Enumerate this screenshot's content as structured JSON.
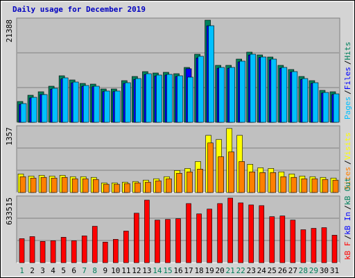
{
  "chart_data": [
    {
      "type": "bar",
      "title": "Daily usage for December 2019",
      "title_color": "#0000c0",
      "categories": [
        "1",
        "2",
        "3",
        "4",
        "5",
        "6",
        "7",
        "8",
        "9",
        "10",
        "11",
        "12",
        "13",
        "14",
        "15",
        "16",
        "17",
        "18",
        "19",
        "20",
        "21",
        "22",
        "23",
        "24",
        "25",
        "26",
        "27",
        "28",
        "29",
        "30",
        "31"
      ],
      "category_colors": [
        "#00805c",
        "#000000",
        "#000000",
        "#000000",
        "#000000",
        "#000000",
        "#00805c",
        "#00805c",
        "#000000",
        "#000000",
        "#000000",
        "#000000",
        "#000000",
        "#00805c",
        "#00805c",
        "#000000",
        "#000000",
        "#000000",
        "#000000",
        "#000000",
        "#00805c",
        "#00805c",
        "#000000",
        "#000000",
        "#000000",
        "#000000",
        "#000000",
        "#00805c",
        "#00805c",
        "#000000",
        "#000000"
      ],
      "ylim": [
        0,
        21388
      ],
      "yticks": [
        21388
      ],
      "separator": "/",
      "series": [
        {
          "name": "Hits",
          "color": "#00805c",
          "values": [
            4278,
            5561,
            6274,
            7414,
            9553,
            8698,
            7985,
            7842,
            6844,
            6844,
            8555,
            9411,
            10409,
            10124,
            10266,
            9981,
            11264,
            13973,
            20960,
            11692,
            11692,
            12975,
            14401,
            13831,
            13403,
            11692,
            10837,
            9411,
            8555,
            6559,
            6274
          ]
        },
        {
          "name": "Files",
          "color": "#0000ff",
          "values": [
            3700,
            5000,
            5700,
            6800,
            8900,
            8100,
            7400,
            7300,
            6300,
            6300,
            8000,
            8800,
            9800,
            9500,
            9700,
            9400,
            11000,
            13200,
            19800,
            11100,
            11100,
            12400,
            13800,
            13300,
            12800,
            11100,
            10300,
            8800,
            8000,
            6000,
            5700
          ]
        },
        {
          "name": "Pages",
          "color": "#00c0ff",
          "values": [
            3850,
            5130,
            5700,
            6990,
            9125,
            8270,
            7560,
            7415,
            6420,
            6420,
            8130,
            8985,
            9980,
            9700,
            9840,
            9555,
            9270,
            13550,
            19820,
            11265,
            11265,
            12550,
            13975,
            13405,
            12975,
            11265,
            10410,
            8985,
            8130,
            6130,
            5845
          ]
        }
      ]
    },
    {
      "type": "bar",
      "ylim": [
        0,
        1357
      ],
      "yticks": [
        1357
      ],
      "separator": "/",
      "series": [
        {
          "name": "Visits",
          "color": "#ffff00",
          "values": [
            378,
            336,
            350,
            336,
            350,
            322,
            322,
            308,
            196,
            196,
            210,
            224,
            252,
            280,
            322,
            448,
            490,
            630,
            1162,
            1078,
            1302,
            1162,
            574,
            504,
            490,
            420,
            378,
            336,
            322,
            308,
            294
          ]
        },
        {
          "name": "Sites",
          "color": "#ff8000",
          "values": [
            322,
            294,
            308,
            294,
            308,
            280,
            280,
            266,
            168,
            168,
            182,
            196,
            210,
            238,
            280,
            392,
            420,
            476,
            1008,
            728,
            826,
            630,
            420,
            406,
            406,
            322,
            308,
            280,
            280,
            266,
            252
          ]
        }
      ]
    },
    {
      "type": "bar",
      "ylim": [
        0,
        633515
      ],
      "yticks": [
        633515
      ],
      "separator": "/",
      "series": [
        {
          "name": "kB F",
          "color": "#ff0000",
          "values": [
            228585,
            248178,
            202461,
            208992,
            241647,
            208992,
            254709,
            346143,
            195930,
            222054,
            300426,
            470232,
            594321,
            404922,
            411453,
            417984,
            561666,
            463701,
            509418,
            561666,
            613914,
            568197,
            548604,
            542073,
            437577,
            444108,
            404922,
            313488,
            326550,
            333081,
            261240
          ]
        }
      ],
      "other_legend": [
        {
          "name": "kB In",
          "color": "#0000ff"
        },
        {
          "name": "kB Out",
          "color": "#00805c"
        }
      ]
    }
  ]
}
